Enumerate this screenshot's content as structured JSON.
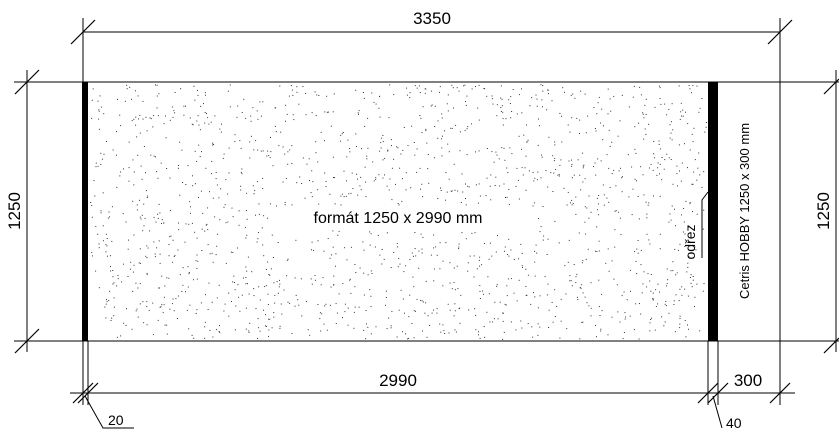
{
  "drawing": {
    "overall_width_label": "3350",
    "height_left_label": "1250",
    "height_right_label": "1250",
    "board_width_label": "2990",
    "strip_width_label": "300",
    "edge_left_label": "20",
    "cut_label": "40",
    "main_board_label": "formát 1250 x 2990 mm",
    "strip_label": "Cetris HOBBY 1250 x 300 mm",
    "cut_annotation": "odřez"
  },
  "colors": {
    "line": "#000000",
    "speckle": "#333333",
    "background": "#ffffff"
  }
}
